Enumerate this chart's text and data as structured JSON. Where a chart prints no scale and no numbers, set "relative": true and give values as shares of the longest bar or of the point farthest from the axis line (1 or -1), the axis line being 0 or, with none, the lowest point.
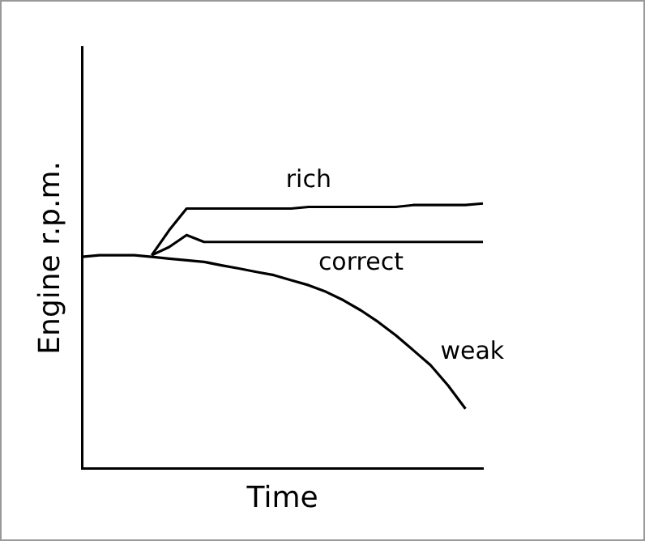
{
  "chart_data": {
    "type": "line",
    "relative": true,
    "xlabel": "Time",
    "ylabel": "Engine r.p.m.",
    "tick_labels": false,
    "grid": false,
    "legend": false,
    "marker": "none",
    "line_style": "solid",
    "categories": [
      null,
      null,
      null,
      null,
      null,
      null,
      null,
      null,
      null,
      null,
      null,
      null,
      null,
      null,
      null,
      null,
      null,
      null,
      null,
      null,
      null,
      null,
      null,
      null
    ],
    "series": [
      {
        "name": "rich",
        "color": "#000000",
        "values": [
          null,
          null,
          null,
          null,
          0.805,
          0.899,
          0.981,
          0.981,
          0.981,
          0.981,
          0.981,
          0.981,
          0.981,
          0.987,
          0.987,
          0.987,
          0.987,
          0.987,
          0.987,
          0.994,
          0.994,
          0.994,
          0.994,
          1
        ]
      },
      {
        "name": "correct",
        "color": "#000000",
        "values": [
          null,
          null,
          null,
          null,
          0.805,
          0.836,
          0.881,
          0.855,
          0.855,
          0.855,
          0.855,
          0.855,
          0.855,
          0.855,
          0.855,
          0.855,
          0.855,
          0.855,
          0.855,
          0.855,
          0.855,
          0.855,
          0.855,
          0.855
        ]
      },
      {
        "name": "weak",
        "color": "#000000",
        "values": [
          0.799,
          0.805,
          0.805,
          0.805,
          0.799,
          0.792,
          0.786,
          0.78,
          0.767,
          0.755,
          0.742,
          0.73,
          0.711,
          0.692,
          0.667,
          0.635,
          0.597,
          0.553,
          0.503,
          0.447,
          0.39,
          0.314,
          0.226,
          null
        ]
      }
    ]
  }
}
